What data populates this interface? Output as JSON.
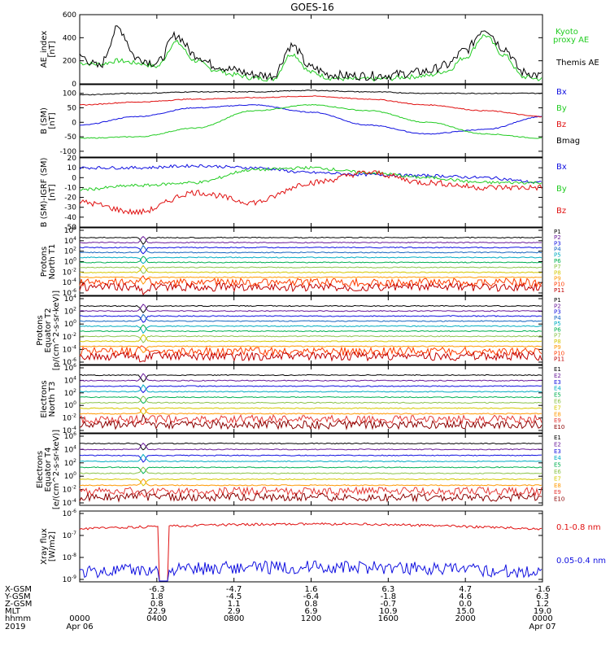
{
  "title": "GOES-16",
  "colors": {
    "black": "#000000",
    "green": "#22cc22",
    "blue": "#1010e0",
    "red": "#e01010"
  },
  "chart_data": [
    {
      "type": "line",
      "ylabel": "AE_index [nT]",
      "ylim": [
        0,
        600
      ],
      "yticks": [
        "0",
        "200",
        "400",
        "600"
      ],
      "legend_placement": "right",
      "series": [
        {
          "name": "Kyoto proxy AE",
          "color": "#22cc22",
          "x": [
            0,
            1,
            2,
            3,
            4,
            5,
            6,
            7,
            8,
            9,
            10,
            11,
            12,
            13,
            14,
            15,
            16,
            17,
            18,
            19,
            20,
            21,
            22,
            23,
            24
          ],
          "y": [
            180,
            170,
            200,
            180,
            150,
            360,
            200,
            120,
            80,
            50,
            40,
            260,
            100,
            50,
            40,
            40,
            45,
            60,
            70,
            110,
            230,
            420,
            250,
            60,
            40
          ]
        },
        {
          "name": "Themis AE",
          "color": "#000000",
          "x": [
            0,
            1,
            2,
            3,
            4,
            5,
            6,
            7,
            8,
            9,
            10,
            11,
            12,
            13,
            14,
            15,
            16,
            17,
            18,
            19,
            20,
            21,
            22,
            23,
            24
          ],
          "y": [
            240,
            150,
            480,
            220,
            180,
            420,
            250,
            160,
            120,
            80,
            70,
            330,
            140,
            80,
            70,
            70,
            75,
            90,
            110,
            160,
            290,
            480,
            310,
            100,
            70
          ]
        }
      ]
    },
    {
      "type": "line",
      "ylabel": "B (SM) [nT]",
      "ylim": [
        -120,
        130
      ],
      "yticks": [
        "-100",
        "-50",
        "0",
        "50",
        "100"
      ],
      "legend_placement": "right",
      "series": [
        {
          "name": "Bx",
          "color": "#1010e0",
          "x": [
            0,
            3,
            6,
            9,
            12,
            15,
            18,
            21,
            24
          ],
          "y": [
            -10,
            20,
            50,
            60,
            35,
            -10,
            -40,
            -25,
            20
          ]
        },
        {
          "name": "By",
          "color": "#22cc22",
          "x": [
            0,
            3,
            6,
            9,
            12,
            15,
            18,
            21,
            24
          ],
          "y": [
            -55,
            -50,
            -20,
            40,
            60,
            40,
            0,
            -40,
            -55
          ]
        },
        {
          "name": "Bz",
          "color": "#e01010",
          "x": [
            0,
            3,
            6,
            9,
            12,
            15,
            18,
            21,
            24
          ],
          "y": [
            60,
            70,
            80,
            85,
            90,
            80,
            60,
            40,
            20
          ]
        },
        {
          "name": "Bmag",
          "color": "#000000",
          "x": [
            0,
            3,
            6,
            9,
            12,
            15,
            18,
            21,
            24
          ],
          "y": [
            95,
            100,
            105,
            105,
            110,
            105,
            100,
            100,
            100
          ]
        }
      ]
    },
    {
      "type": "line",
      "ylabel": "B (SM)-IGRF (SM) [nT]",
      "ylim": [
        -50,
        20
      ],
      "yticks": [
        "-50",
        "-40",
        "-30",
        "-20",
        "-10",
        "0",
        "10",
        "20"
      ],
      "legend_placement": "right",
      "series": [
        {
          "name": "Bx",
          "color": "#1010e0",
          "x": [
            0,
            3,
            6,
            9,
            12,
            15,
            18,
            21,
            24
          ],
          "y": [
            10,
            10,
            12,
            10,
            5,
            3,
            2,
            0,
            -5
          ]
        },
        {
          "name": "By",
          "color": "#22cc22",
          "x": [
            0,
            3,
            6,
            9,
            12,
            15,
            18,
            21,
            24
          ],
          "y": [
            -12,
            -8,
            -5,
            8,
            10,
            5,
            0,
            -5,
            -5
          ]
        },
        {
          "name": "Bz",
          "color": "#e01010",
          "x": [
            0,
            3,
            6,
            9,
            12,
            15,
            18,
            21,
            24
          ],
          "y": [
            -25,
            -35,
            -15,
            -25,
            -5,
            5,
            -5,
            -10,
            -10
          ]
        }
      ]
    },
    {
      "type": "line",
      "ylabel": "Protons North T1",
      "ylog": true,
      "yticks": [
        "10^-6",
        "10^-4",
        "10^-2",
        "10^0",
        "10^2",
        "10^4",
        "10^6"
      ],
      "legend_placement": "right",
      "channels": [
        "P1",
        "P2",
        "P3",
        "P4",
        "P5",
        "P6",
        "P7",
        "P8",
        "P9",
        "P10",
        "P11"
      ]
    },
    {
      "type": "line",
      "ylabel": "Protons Equator T2 [p/(cm^2-s-sr-keV)]",
      "ylog": true,
      "yticks": [
        "10^-6",
        "10^-4",
        "10^-2",
        "10^0",
        "10^2",
        "10^4"
      ],
      "legend_placement": "right",
      "channels": [
        "P1",
        "P2",
        "P3",
        "P4",
        "P5",
        "P6",
        "P7",
        "P8",
        "P9",
        "P10",
        "P11"
      ]
    },
    {
      "type": "line",
      "ylabel": "Electrons North T3",
      "ylog": true,
      "yticks": [
        "10^-4",
        "10^-2",
        "10^0",
        "10^2",
        "10^4",
        "10^6"
      ],
      "legend_placement": "right",
      "channels": [
        "E1",
        "E2",
        "E3",
        "E4",
        "E5",
        "E6",
        "E7",
        "E8",
        "E9",
        "E10"
      ]
    },
    {
      "type": "line",
      "ylabel": "Electrons Equator T4 [e/(cm^2-s-sr-keV)]",
      "ylog": true,
      "yticks": [
        "10^-4",
        "10^-2",
        "10^0",
        "10^2",
        "10^4",
        "10^6"
      ],
      "legend_placement": "right",
      "channels": [
        "E1",
        "E2",
        "E3",
        "E4",
        "E5",
        "E6",
        "E7",
        "E8",
        "E9",
        "E10"
      ]
    },
    {
      "type": "line",
      "ylabel": "Xray flux [W/m2]",
      "ylog": true,
      "yticks": [
        "10^-9",
        "10^-8",
        "10^-7",
        "10^-6"
      ],
      "legend_placement": "right",
      "series": [
        {
          "name": "0.1-0.8 nm",
          "color": "#e01010"
        },
        {
          "name": "0.05-0.4 nm",
          "color": "#1010e0"
        }
      ]
    }
  ],
  "footer": {
    "labels": [
      "X-GSM",
      "Y-GSM",
      "Z-GSM",
      "MLT",
      "hhmm",
      "2019"
    ],
    "columns": [
      [
        "",
        "",
        "",
        "",
        "0000",
        "Apr 06"
      ],
      [
        "-6.3",
        "1.8",
        "0.8",
        "22.9",
        "0400",
        ""
      ],
      [
        "-4.7",
        "-4.5",
        "1.1",
        "2.9",
        "0800",
        ""
      ],
      [
        "1.6",
        "-6.4",
        "0.8",
        "6.9",
        "1200",
        ""
      ],
      [
        "6.3",
        "-1.8",
        "-0.7",
        "10.9",
        "1600",
        ""
      ],
      [
        "4.7",
        "4.6",
        "0.0",
        "15.0",
        "2000",
        ""
      ],
      [
        "-1.6",
        "6.3",
        "1.2",
        "19.0",
        "0000",
        "Apr 07"
      ]
    ]
  }
}
